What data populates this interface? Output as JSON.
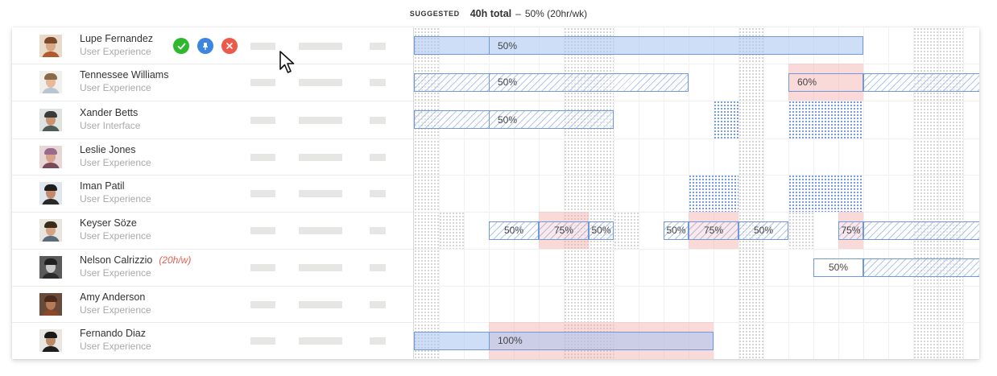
{
  "header": {
    "suggested_label": "SUGGESTED",
    "total": "40h total",
    "separator": "–",
    "allocation": "50% (20hr/wk)"
  },
  "colors": {
    "accept": "#2eb82e",
    "pin": "#3a86e0",
    "reject": "#ee5a4a",
    "bar_border": "#6f98dd",
    "conflict": "#f4aaaa",
    "note": "#e0604e"
  },
  "row_actions": {
    "accept_icon": "check-icon",
    "pin_icon": "pin-icon",
    "reject_icon": "close-icon"
  },
  "people": [
    {
      "name": "Lupe Fernandez",
      "role": "User Experience",
      "note": "",
      "skin": "#d9a884",
      "hair": "#7a4a2a",
      "shirt": "#b05a30",
      "bg": "#e9d9c8"
    },
    {
      "name": "Tennessee Williams",
      "role": "User Experience",
      "note": "",
      "skin": "#e5b99a",
      "hair": "#8a6a4a",
      "shirt": "#b9c6d2",
      "bg": "#f1efec"
    },
    {
      "name": "Xander Betts",
      "role": "User Interface",
      "note": "",
      "skin": "#c99373",
      "hair": "#3a3a3a",
      "shirt": "#4d5c58",
      "bg": "#dfe3e0"
    },
    {
      "name": "Leslie Jones",
      "role": "User Experience",
      "note": "",
      "skin": "#d8a38a",
      "hair": "#9a6a8a",
      "shirt": "#7a4a5a",
      "bg": "#e7d6d6"
    },
    {
      "name": "Iman Patil",
      "role": "User Experience",
      "note": "",
      "skin": "#c28a6a",
      "hair": "#1e1e1e",
      "shirt": "#2a2a2a",
      "bg": "#dfe6ee"
    },
    {
      "name": "Keyser Söze",
      "role": "User Experience",
      "note": "",
      "skin": "#d4a285",
      "hair": "#3a2a1a",
      "shirt": "#5a6a7a",
      "bg": "#e8e4de"
    },
    {
      "name": "Nelson Calrizzio",
      "role": "User Experience",
      "note": "(20h/w)",
      "skin": "#c8c8c8",
      "hair": "#202020",
      "shirt": "#2a2a2a",
      "bg": "#5a5a5a"
    },
    {
      "name": "Amy Anderson",
      "role": "User Experience",
      "note": "",
      "skin": "#b87a55",
      "hair": "#4a2a1a",
      "shirt": "#8a4a2a",
      "bg": "#6a4a3a"
    },
    {
      "name": "Fernando Diaz",
      "role": "User Experience",
      "note": "",
      "skin": "#b88a6a",
      "hair": "#1a1a1a",
      "shirt": "#1e1e1e",
      "bg": "#e9e6e2"
    }
  ],
  "allocations": [
    [
      {
        "label": "50%",
        "fill": "solid"
      }
    ],
    [
      {
        "label": "50%",
        "fill": "hatch"
      },
      {
        "label": "60%",
        "fill": "blank"
      },
      {
        "label": "",
        "fill": "hatch"
      }
    ],
    [
      {
        "label": "50%",
        "fill": "hatch"
      }
    ],
    [],
    [],
    [
      {
        "label": "50%",
        "fill": "hatch"
      },
      {
        "label": "75%",
        "fill": "hatch"
      },
      {
        "label": "50%",
        "fill": "hatch"
      },
      {
        "label": "50%",
        "fill": "hatch"
      },
      {
        "label": "75%",
        "fill": "hatch"
      },
      {
        "label": "50%",
        "fill": "hatch"
      },
      {
        "label": "75%",
        "fill": "hatch"
      },
      {
        "label": "",
        "fill": "hatch"
      }
    ],
    [
      {
        "label": "50%",
        "fill": "blank"
      },
      {
        "label": "",
        "fill": "hatch"
      }
    ],
    [],
    [
      {
        "label": "100%",
        "fill": "solid"
      }
    ]
  ]
}
